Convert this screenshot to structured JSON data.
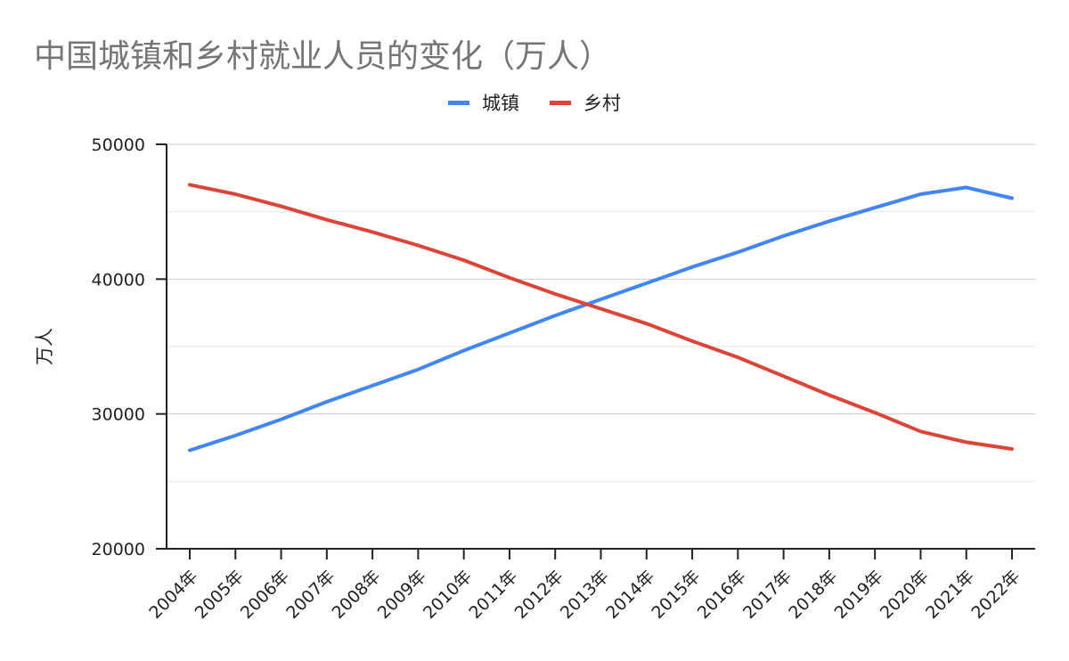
{
  "chart_data": {
    "type": "line",
    "title": "中国城镇和乡村就业人员的变化（万人）",
    "xlabel": "",
    "ylabel": "万人",
    "ylim": [
      20000,
      50000
    ],
    "yticks": [
      "50000",
      "40000",
      "30000",
      "20000"
    ],
    "grid": true,
    "legend_position": "top",
    "categories": [
      "2004年",
      "2005年",
      "2006年",
      "2007年",
      "2008年",
      "2009年",
      "2010年",
      "2011年",
      "2012年",
      "2013年",
      "2014年",
      "2015年",
      "2016年",
      "2017年",
      "2018年",
      "2019年",
      "2020年",
      "2021年",
      "2022年"
    ],
    "series": [
      {
        "name": "城镇",
        "color": "#4285f4",
        "values": [
          27300,
          28400,
          29600,
          30900,
          32100,
          33300,
          34700,
          36000,
          37300,
          38500,
          39700,
          40900,
          42000,
          43200,
          44300,
          45300,
          46300,
          46800,
          46000
        ]
      },
      {
        "name": "乡村",
        "color": "#db4437",
        "values": [
          47000,
          46300,
          45400,
          44400,
          43500,
          42500,
          41400,
          40100,
          38900,
          37800,
          36700,
          35400,
          34200,
          32800,
          31400,
          30100,
          28700,
          27900,
          27400
        ]
      }
    ]
  }
}
